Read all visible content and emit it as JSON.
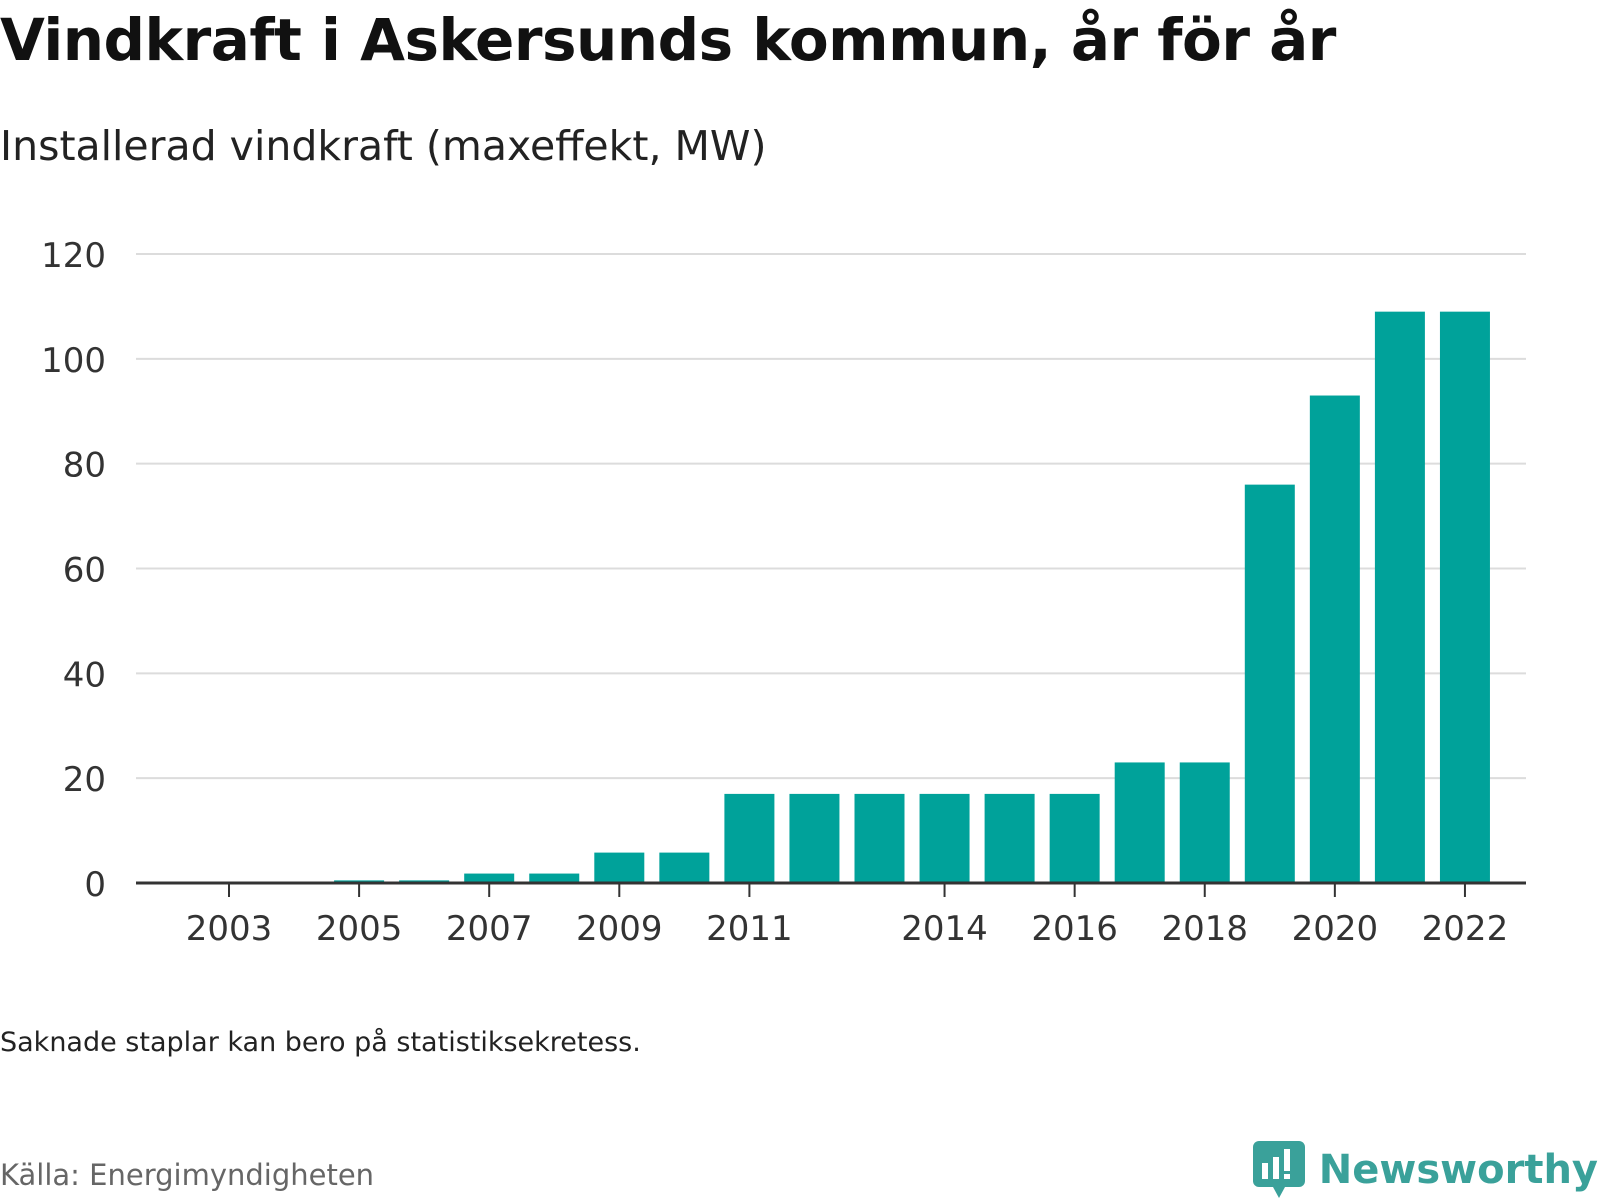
{
  "title": "Vindkraft i Askersunds kommun, år för år",
  "subtitle": "Installerad vindkraft (maxeffekt, MW)",
  "note": "Saknade staplar kan bero på statistiksekretess.",
  "source": "Källa: Energimyndigheten",
  "brand": {
    "name": "Newsworthy",
    "color": "#3aa19a",
    "icon": "newsworthy-logo-icon"
  },
  "chart_data": {
    "type": "bar",
    "categories": [
      "2003",
      "2004",
      "2005",
      "2006",
      "2007",
      "2008",
      "2009",
      "2010",
      "2011",
      "2012",
      "2013",
      "2014",
      "2015",
      "2016",
      "2017",
      "2018",
      "2019",
      "2020",
      "2021",
      "2022"
    ],
    "values": [
      0,
      0,
      0.5,
      0.5,
      1.8,
      1.8,
      5.8,
      5.8,
      17,
      17,
      17,
      17,
      17,
      17,
      23,
      23,
      76,
      93,
      109,
      109
    ],
    "x_tick_labels": [
      "2003",
      "2005",
      "2007",
      "2009",
      "2011",
      "2014",
      "2016",
      "2018",
      "2020",
      "2022"
    ],
    "y_ticks": [
      0,
      20,
      40,
      60,
      80,
      100,
      120
    ],
    "ylim": [
      0,
      120
    ],
    "grid": true,
    "bar_color": "#00a29a"
  }
}
